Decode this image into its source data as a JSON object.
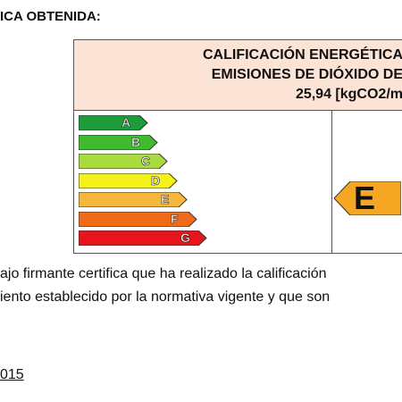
{
  "heading": "ICA OBTENIDA:",
  "certificate": {
    "title_line1": "CALIFICACIÓN ENERGÉTICA",
    "title_line2": "EMISIONES DE DIÓXIDO DE",
    "value_line": "25,94 [kgCO2/m"
  },
  "scale": [
    {
      "letter": "A",
      "color": "#1e9c3a"
    },
    {
      "letter": "B",
      "color": "#3fbb2d"
    },
    {
      "letter": "C",
      "color": "#a8dc3c"
    },
    {
      "letter": "D",
      "color": "#f5f21a"
    },
    {
      "letter": "E",
      "color": "#f5b83a"
    },
    {
      "letter": "F",
      "color": "#f06a1a"
    },
    {
      "letter": "G",
      "color": "#e8141c"
    }
  ],
  "rating": {
    "letter": "E",
    "color": "#f5a623"
  },
  "body_text": {
    "line1": "ajo firmante certifica que ha realizado la calificación",
    "line2": "iento establecido por la normativa vigente y que son"
  },
  "date_fragment": "015"
}
